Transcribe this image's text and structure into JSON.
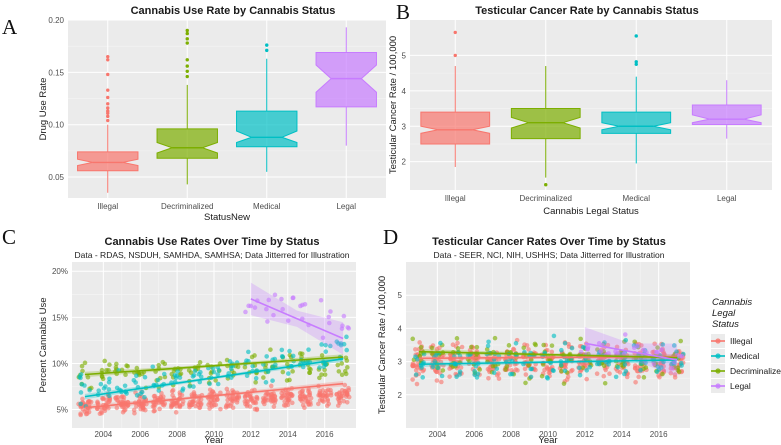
{
  "figure": {
    "colors": {
      "Illegal": "#F8766D",
      "Decriminalized": "#7CAE00",
      "Medical": "#00BFC4",
      "Legal": "#C77CFF"
    }
  },
  "chart_data": [
    {
      "panel": "A",
      "type": "box",
      "title": "Cannabis Use Rate by Cannabis Status",
      "xlabel": "StatusNew",
      "ylabel": "Drug Use Rate",
      "categories": [
        "Illegal",
        "Decriminalized",
        "Medical",
        "Legal"
      ],
      "ylim": [
        0.03,
        0.2
      ],
      "yticks": [
        0.05,
        0.1,
        0.15,
        0.2
      ],
      "ytick_labels": [
        "0.05",
        "0.10",
        "0.15",
        "0.20"
      ],
      "boxes": [
        {
          "name": "Illegal",
          "min": 0.035,
          "q1": 0.056,
          "median": 0.064,
          "q3": 0.074,
          "max": 0.1,
          "notch": [
            0.061,
            0.067
          ],
          "outliers": [
            0.104,
            0.108,
            0.111,
            0.113,
            0.116,
            0.12,
            0.126,
            0.133,
            0.148,
            0.162,
            0.165
          ]
        },
        {
          "name": "Decriminalized",
          "min": 0.043,
          "q1": 0.068,
          "median": 0.078,
          "q3": 0.096,
          "max": 0.138,
          "notch": [
            0.073,
            0.083
          ],
          "outliers": [
            0.146,
            0.151,
            0.156,
            0.162,
            0.178,
            0.182,
            0.187,
            0.19
          ]
        },
        {
          "name": "Medical",
          "min": 0.055,
          "q1": 0.079,
          "median": 0.088,
          "q3": 0.113,
          "max": 0.163,
          "notch": [
            0.083,
            0.094
          ],
          "outliers": [
            0.171,
            0.176
          ]
        },
        {
          "name": "Legal",
          "min": 0.08,
          "q1": 0.117,
          "median": 0.144,
          "q3": 0.169,
          "max": 0.193,
          "notch": [
            0.131,
            0.157
          ],
          "outliers": []
        }
      ]
    },
    {
      "panel": "B",
      "type": "box",
      "title": "Testicular Cancer Rate by Cannabis Status",
      "xlabel": "Cannabis Legal Status",
      "ylabel": "Testicular Cancer Rate / 100,000",
      "categories": [
        "Illegal",
        "Decriminalized",
        "Medical",
        "Legal"
      ],
      "ylim": [
        1.2,
        6.0
      ],
      "yticks": [
        2,
        3,
        4,
        5
      ],
      "ytick_labels": [
        "2",
        "3",
        "4",
        "5"
      ],
      "boxes": [
        {
          "name": "Illegal",
          "min": 1.85,
          "q1": 2.5,
          "median": 2.9,
          "q3": 3.4,
          "max": 4.7,
          "notch": [
            2.8,
            3.0
          ],
          "outliers": [
            5.0,
            5.65
          ]
        },
        {
          "name": "Decriminalized",
          "min": 1.55,
          "q1": 2.65,
          "median": 3.1,
          "q3": 3.5,
          "max": 4.7,
          "notch": [
            2.95,
            3.25
          ],
          "outliers": [
            1.35
          ]
        },
        {
          "name": "Medical",
          "min": 1.95,
          "q1": 2.8,
          "median": 3.0,
          "q3": 3.4,
          "max": 4.4,
          "notch": [
            2.9,
            3.1
          ],
          "outliers": [
            4.75,
            4.82,
            5.55
          ]
        },
        {
          "name": "Legal",
          "min": 2.65,
          "q1": 3.05,
          "median": 3.2,
          "q3": 3.6,
          "max": 4.3,
          "notch": [
            3.1,
            3.32
          ],
          "outliers": []
        }
      ]
    },
    {
      "panel": "C",
      "type": "scatter",
      "title": "Cannabis Use Rates Over Time by Status",
      "subtitle": "Data - RDAS, NSDUH, SAMHDA, SAMHSA; Data Jitterred for Illustration",
      "xlabel": "Year",
      "ylabel": "Percent Cannabis Use",
      "xlim": [
        2002.3,
        2017.7
      ],
      "ylim": [
        0.03,
        0.21
      ],
      "xticks": [
        2004,
        2006,
        2008,
        2010,
        2012,
        2014,
        2016
      ],
      "xtick_labels": [
        "2004",
        "2006",
        "2008",
        "2010",
        "2012",
        "2014",
        "2016"
      ],
      "yticks": [
        0.05,
        0.1,
        0.15,
        0.2
      ],
      "ytick_labels": [
        "5%",
        "10%",
        "15%",
        "20%"
      ],
      "series": [
        {
          "name": "Illegal",
          "years": [
            2003,
            2017
          ],
          "center": [
            0.055,
            0.065
          ],
          "spread": 0.012,
          "n": 30,
          "trend": [
            [
              2003,
              0.052
            ],
            [
              2017,
              0.078
            ]
          ]
        },
        {
          "name": "Decriminalized",
          "years": [
            2003,
            2017
          ],
          "center": [
            0.085,
            0.1
          ],
          "spread": 0.018,
          "n": 9,
          "trend": [
            [
              2003,
              0.088
            ],
            [
              2017,
              0.107
            ]
          ]
        },
        {
          "name": "Medical",
          "years": [
            2003,
            2017
          ],
          "center": [
            0.07,
            0.11
          ],
          "spread": 0.02,
          "n": 9,
          "trend": [
            [
              2003,
              0.064
            ],
            [
              2017,
              0.105
            ]
          ]
        },
        {
          "name": "Legal",
          "years": [
            2012,
            2017
          ],
          "center": [
            0.165,
            0.145
          ],
          "spread": 0.025,
          "n": 5,
          "trend": [
            [
              2012,
              0.17
            ],
            [
              2017,
              0.127
            ]
          ]
        }
      ]
    },
    {
      "panel": "D",
      "type": "scatter",
      "title": "Testicular Cancer Rates Over Time by Status",
      "subtitle": "Data - SEER, NCI, NIH, USHHS; Data Jitterred for Illustration",
      "xlabel": "Year",
      "ylabel": "Testicular Cancer Rate / 100,000",
      "xlim": [
        2002.3,
        2017.7
      ],
      "ylim": [
        1.0,
        6.0
      ],
      "xticks": [
        2004,
        2006,
        2008,
        2010,
        2012,
        2014,
        2016
      ],
      "xtick_labels": [
        "2004",
        "2006",
        "2008",
        "2010",
        "2012",
        "2014",
        "2016"
      ],
      "yticks": [
        2,
        3,
        4,
        5
      ],
      "ytick_labels": [
        "2",
        "3",
        "4",
        "5"
      ],
      "legend": {
        "title": "Cannabis Legal Status",
        "position": "right",
        "entries": [
          "Illegal",
          "Medical",
          "Decriminalized",
          "Legal"
        ]
      },
      "series": [
        {
          "name": "Illegal",
          "years": [
            2003,
            2017
          ],
          "center": [
            3.0,
            3.0
          ],
          "spread": 0.6,
          "n": 30,
          "trend": [
            [
              2003,
              3.1
            ],
            [
              2017,
              3.15
            ]
          ]
        },
        {
          "name": "Decriminalized",
          "years": [
            2003,
            2017
          ],
          "center": [
            3.2,
            3.0
          ],
          "spread": 0.7,
          "n": 9,
          "trend": [
            [
              2003,
              3.3
            ],
            [
              2017,
              3.12
            ]
          ]
        },
        {
          "name": "Medical",
          "years": [
            2003,
            2017
          ],
          "center": [
            2.95,
            3.1
          ],
          "spread": 0.65,
          "n": 9,
          "trend": [
            [
              2003,
              2.92
            ],
            [
              2017,
              3.05
            ]
          ]
        },
        {
          "name": "Legal",
          "years": [
            2012,
            2017
          ],
          "center": [
            3.4,
            3.1
          ],
          "spread": 0.5,
          "n": 5,
          "trend": [
            [
              2012,
              3.55
            ],
            [
              2017,
              3.05
            ]
          ]
        }
      ]
    }
  ]
}
